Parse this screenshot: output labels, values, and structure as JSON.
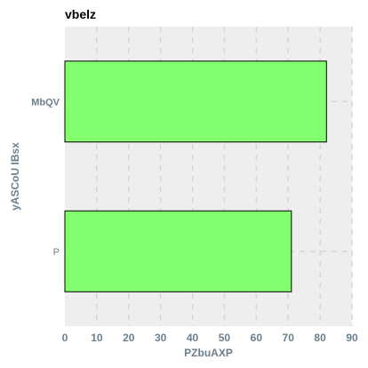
{
  "chart_data": {
    "type": "bar",
    "orientation": "horizontal",
    "title": "vbelz",
    "xlabel": "PZbuAXP",
    "ylabel": "yASCoU IBsx",
    "categories": [
      "MbQV",
      "P"
    ],
    "values": [
      82,
      71
    ],
    "xlim": [
      0,
      90
    ],
    "xticks": [
      0,
      10,
      20,
      30,
      40,
      50,
      60,
      70,
      80,
      90
    ],
    "grid": true,
    "legend": "none",
    "colors": {
      "bar_fill": "#84ff70",
      "bar_stroke": "#000000",
      "plot_background": "#eeeeee",
      "grid": "#d6d6d6",
      "axis_text": "#6b7f8c"
    }
  }
}
